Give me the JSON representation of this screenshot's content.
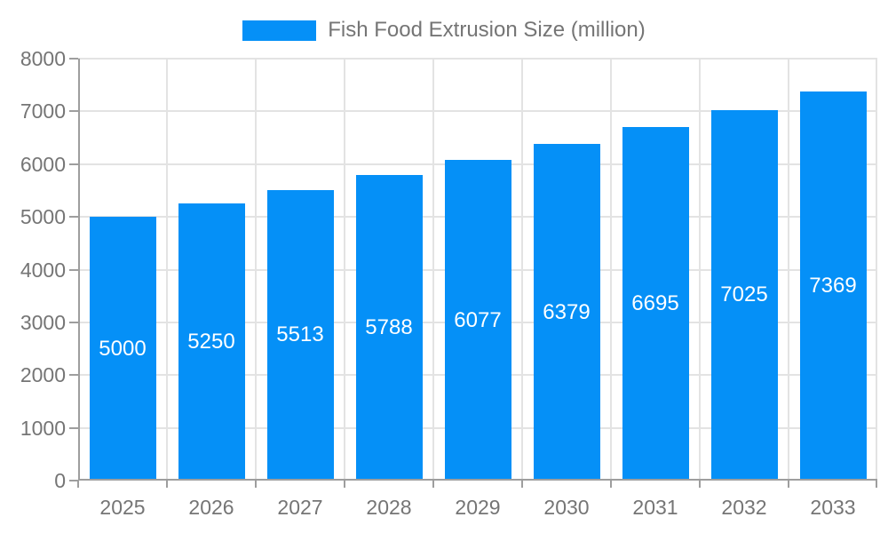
{
  "legend": {
    "label": "Fish Food Extrusion Size (million)"
  },
  "colors": {
    "bar": "#0590F7",
    "bar_label": "#FFFFFF",
    "grid": "#E3E3E3",
    "axis": "#9E9E9E",
    "tick": "#9E9E9E",
    "text": "#757575",
    "background": "#FFFFFF"
  },
  "chart_data": {
    "type": "bar",
    "title": "Fish Food Extrusion Size (million)",
    "categories": [
      "2025",
      "2026",
      "2027",
      "2028",
      "2029",
      "2030",
      "2031",
      "2032",
      "2033"
    ],
    "series": [
      {
        "name": "Fish Food Extrusion Size (million)",
        "values": [
          5000,
          5250,
          5513,
          5788,
          6077,
          6379,
          6695,
          7025,
          7369
        ]
      }
    ],
    "xlabel": "",
    "ylabel": "",
    "ylim": [
      0,
      8000
    ],
    "ytick_step": 1000,
    "yticks": [
      0,
      1000,
      2000,
      3000,
      4000,
      5000,
      6000,
      7000,
      8000
    ],
    "grid": true,
    "legend_position": "top-center",
    "bar_label_position": "inside-center",
    "bar_width_fraction": 0.75
  }
}
